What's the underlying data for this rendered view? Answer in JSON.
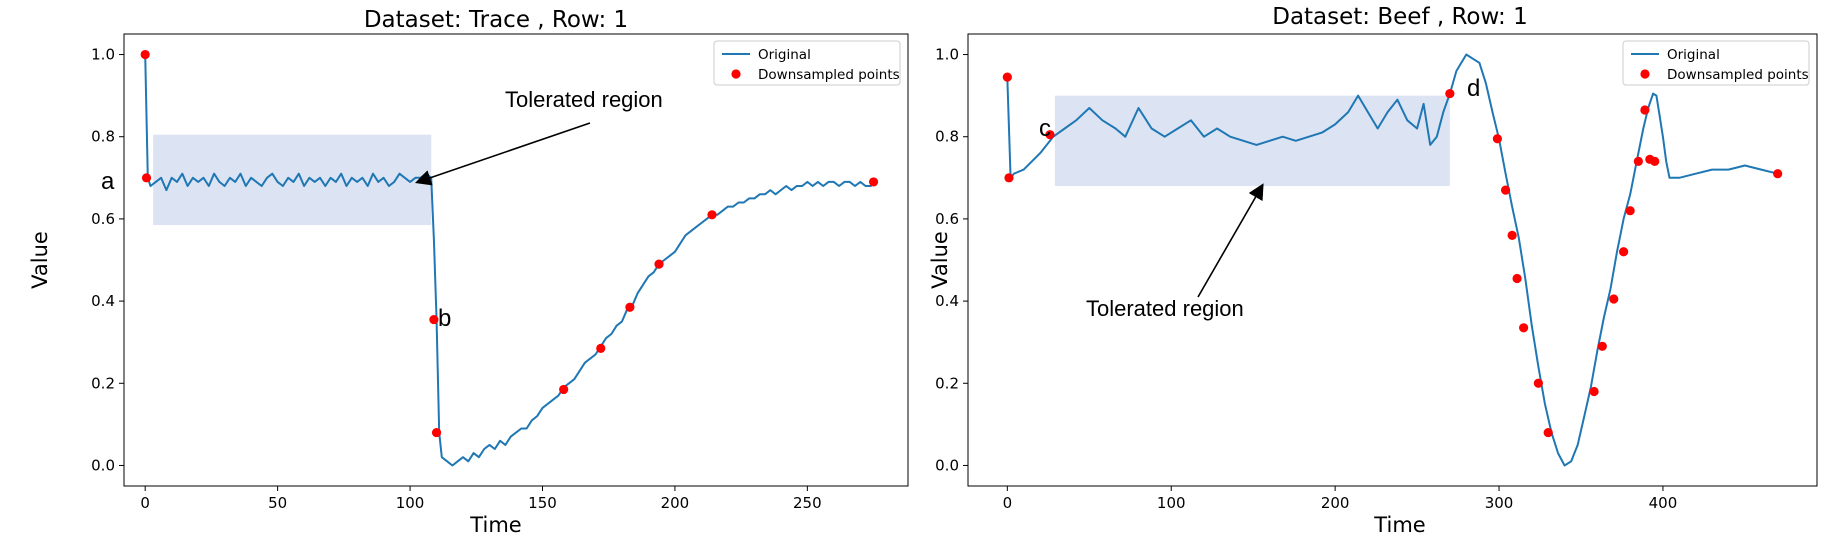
{
  "chart_data": [
    {
      "type": "line",
      "title": "Dataset: Trace , Row: 1",
      "xlabel": "Time",
      "ylabel": "Value",
      "xlim": [
        -8,
        288
      ],
      "ylim": [
        -0.05,
        1.05
      ],
      "xticks": [
        0,
        50,
        100,
        150,
        200,
        250
      ],
      "yticks": [
        0.0,
        0.2,
        0.4,
        0.6,
        0.8,
        1.0
      ],
      "xtick_labels": [
        "0",
        "50",
        "100",
        "150",
        "200",
        "250"
      ],
      "ytick_labels": [
        "0.0",
        "0.2",
        "0.4",
        "0.6",
        "0.8",
        "1.0"
      ],
      "legend_position": "top-right",
      "series": [
        {
          "name": "Original",
          "kind": "line",
          "color": "#1f77b4",
          "x": [
            0,
            1,
            2,
            4,
            6,
            8,
            10,
            12,
            14,
            16,
            18,
            20,
            22,
            24,
            26,
            28,
            30,
            32,
            34,
            36,
            38,
            40,
            42,
            44,
            46,
            48,
            50,
            52,
            54,
            56,
            58,
            60,
            62,
            64,
            66,
            68,
            70,
            72,
            74,
            76,
            78,
            80,
            82,
            84,
            86,
            88,
            90,
            92,
            94,
            96,
            98,
            100,
            102,
            104,
            106,
            108,
            109,
            110,
            111,
            112,
            114,
            116,
            118,
            120,
            122,
            124,
            126,
            128,
            130,
            132,
            134,
            136,
            138,
            140,
            142,
            144,
            146,
            148,
            150,
            152,
            154,
            156,
            158,
            160,
            162,
            164,
            166,
            168,
            170,
            172,
            174,
            176,
            178,
            180,
            182,
            184,
            186,
            188,
            190,
            192,
            194,
            196,
            198,
            200,
            202,
            204,
            206,
            208,
            210,
            212,
            214,
            216,
            218,
            220,
            222,
            224,
            226,
            228,
            230,
            232,
            234,
            236,
            238,
            240,
            242,
            244,
            246,
            248,
            250,
            252,
            254,
            256,
            258,
            260,
            262,
            264,
            266,
            268,
            270,
            272,
            274,
            275
          ],
          "y": [
            1.0,
            0.7,
            0.68,
            0.69,
            0.7,
            0.67,
            0.7,
            0.69,
            0.71,
            0.68,
            0.7,
            0.69,
            0.7,
            0.68,
            0.71,
            0.69,
            0.68,
            0.7,
            0.69,
            0.71,
            0.68,
            0.7,
            0.69,
            0.68,
            0.7,
            0.71,
            0.69,
            0.68,
            0.7,
            0.69,
            0.71,
            0.68,
            0.7,
            0.69,
            0.7,
            0.68,
            0.7,
            0.69,
            0.71,
            0.68,
            0.7,
            0.69,
            0.7,
            0.68,
            0.71,
            0.69,
            0.7,
            0.68,
            0.69,
            0.71,
            0.7,
            0.69,
            0.7,
            0.7,
            0.71,
            0.7,
            0.55,
            0.36,
            0.08,
            0.02,
            0.01,
            0.0,
            0.01,
            0.02,
            0.01,
            0.03,
            0.02,
            0.04,
            0.05,
            0.04,
            0.06,
            0.05,
            0.07,
            0.08,
            0.09,
            0.09,
            0.11,
            0.12,
            0.14,
            0.15,
            0.16,
            0.17,
            0.19,
            0.2,
            0.21,
            0.23,
            0.25,
            0.26,
            0.27,
            0.29,
            0.31,
            0.32,
            0.34,
            0.35,
            0.38,
            0.39,
            0.42,
            0.44,
            0.46,
            0.47,
            0.49,
            0.5,
            0.51,
            0.52,
            0.54,
            0.56,
            0.57,
            0.58,
            0.59,
            0.6,
            0.61,
            0.61,
            0.62,
            0.63,
            0.63,
            0.64,
            0.64,
            0.65,
            0.65,
            0.66,
            0.66,
            0.67,
            0.66,
            0.67,
            0.68,
            0.67,
            0.68,
            0.68,
            0.69,
            0.68,
            0.69,
            0.68,
            0.69,
            0.69,
            0.68,
            0.69,
            0.69,
            0.68,
            0.69,
            0.68,
            0.68,
            0.69
          ]
        },
        {
          "name": "Downsampled points",
          "kind": "scatter",
          "color": "#ff0000",
          "x": [
            0,
            0.5,
            109,
            110,
            158,
            172,
            183,
            194,
            214,
            275
          ],
          "y": [
            1.0,
            0.7,
            0.355,
            0.08,
            0.185,
            0.285,
            0.385,
            0.49,
            0.61,
            0.69
          ]
        }
      ],
      "highlight": {
        "x": [
          3,
          108
        ],
        "y": [
          0.585,
          0.805
        ]
      },
      "annotations": {
        "region_label": "Tolerated region",
        "letters": [
          "a",
          "b"
        ]
      }
    },
    {
      "type": "line",
      "title": "Dataset: Beef , Row: 1",
      "xlabel": "Time",
      "ylabel": "Value",
      "xlim": [
        -24,
        494
      ],
      "ylim": [
        -0.05,
        1.05
      ],
      "xticks": [
        0,
        100,
        200,
        300,
        400
      ],
      "yticks": [
        0.0,
        0.2,
        0.4,
        0.6,
        0.8,
        1.0
      ],
      "xtick_labels": [
        "0",
        "100",
        "200",
        "300",
        "400"
      ],
      "ytick_labels": [
        "0.0",
        "0.2",
        "0.4",
        "0.6",
        "0.8",
        "1.0"
      ],
      "legend_position": "top-right",
      "series": [
        {
          "name": "Original",
          "kind": "line",
          "color": "#1f77b4",
          "x": [
            0,
            2,
            4,
            10,
            20,
            28,
            35,
            42,
            50,
            58,
            66,
            72,
            80,
            88,
            96,
            104,
            112,
            120,
            128,
            136,
            144,
            152,
            160,
            168,
            176,
            184,
            192,
            200,
            208,
            214,
            220,
            226,
            232,
            238,
            244,
            250,
            254,
            258,
            262,
            266,
            270,
            274,
            280,
            284,
            288,
            292,
            296,
            300,
            304,
            308,
            312,
            316,
            320,
            324,
            328,
            332,
            336,
            340,
            344,
            348,
            352,
            356,
            360,
            364,
            368,
            372,
            376,
            380,
            384,
            388,
            391,
            394,
            396,
            398,
            400,
            402,
            404,
            410,
            420,
            430,
            440,
            450,
            460,
            470
          ],
          "y": [
            0.945,
            0.7,
            0.71,
            0.72,
            0.76,
            0.8,
            0.82,
            0.84,
            0.87,
            0.84,
            0.82,
            0.8,
            0.87,
            0.82,
            0.8,
            0.82,
            0.84,
            0.8,
            0.82,
            0.8,
            0.79,
            0.78,
            0.79,
            0.8,
            0.79,
            0.8,
            0.81,
            0.83,
            0.86,
            0.9,
            0.86,
            0.82,
            0.86,
            0.89,
            0.84,
            0.82,
            0.88,
            0.78,
            0.8,
            0.86,
            0.905,
            0.96,
            1.0,
            0.99,
            0.98,
            0.93,
            0.86,
            0.795,
            0.71,
            0.63,
            0.555,
            0.455,
            0.34,
            0.24,
            0.15,
            0.08,
            0.03,
            0.0,
            0.01,
            0.05,
            0.12,
            0.19,
            0.28,
            0.36,
            0.43,
            0.52,
            0.6,
            0.66,
            0.74,
            0.82,
            0.87,
            0.905,
            0.9,
            0.85,
            0.8,
            0.74,
            0.7,
            0.7,
            0.71,
            0.72,
            0.72,
            0.73,
            0.72,
            0.71
          ]
        },
        {
          "name": "Downsampled points",
          "kind": "scatter",
          "color": "#ff0000",
          "x": [
            0,
            1,
            26,
            270,
            299,
            304,
            308,
            311,
            315,
            324,
            330,
            358,
            363,
            370,
            376,
            380,
            385,
            389,
            392,
            395,
            470
          ],
          "y": [
            0.945,
            0.7,
            0.805,
            0.905,
            0.795,
            0.67,
            0.56,
            0.455,
            0.335,
            0.2,
            0.08,
            0.18,
            0.29,
            0.405,
            0.52,
            0.62,
            0.74,
            0.865,
            0.745,
            0.74,
            0.71
          ]
        }
      ],
      "highlight": {
        "x": [
          29,
          270
        ],
        "y": [
          0.68,
          0.9
        ]
      },
      "annotations": {
        "region_label": "Tolerated region",
        "letters": [
          "c",
          "d"
        ]
      }
    }
  ]
}
